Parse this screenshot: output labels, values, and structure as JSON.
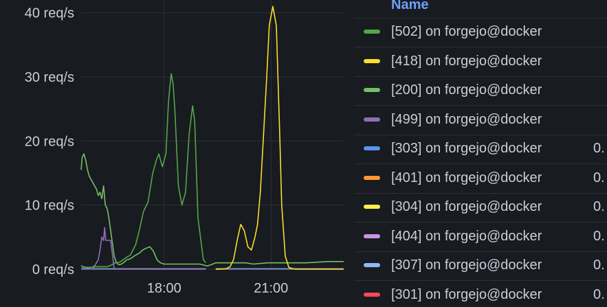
{
  "chart_data": {
    "type": "line",
    "x_unit": "time (hours, 24h clock)",
    "x_ticks": [
      {
        "x": 18,
        "label": "18:00"
      },
      {
        "x": 21,
        "label": "21:00"
      }
    ],
    "xlim": [
      15.67,
      23.04
    ],
    "y_ticks": [
      {
        "y": 0,
        "label": "0 req/s"
      },
      {
        "y": 10,
        "label": "10 req/s"
      },
      {
        "y": 20,
        "label": "20 req/s"
      },
      {
        "y": 30,
        "label": "30 req/s"
      },
      {
        "y": 40,
        "label": "40 req/s"
      }
    ],
    "ylim": [
      0,
      42
    ],
    "grid": true,
    "legend_position": "right",
    "series": [
      {
        "name": "[502] on forgejo@docker",
        "color": "#56a64b",
        "x": [
          15.67,
          15.72,
          15.79,
          16.0,
          16.02,
          16.03,
          16.4,
          16.5,
          16.62,
          16.7,
          16.78,
          16.9,
          17.05,
          17.2,
          17.3,
          17.42,
          17.55,
          17.68,
          17.78,
          17.85,
          17.95,
          18.05,
          18.12,
          18.17,
          18.2,
          18.25,
          18.3,
          18.4,
          18.5,
          18.6,
          18.7,
          18.8,
          18.86,
          18.95,
          19.1,
          19.17
        ],
        "y": [
          0.6,
          0.3,
          0.3,
          0.3,
          0.5,
          0.4,
          0.4,
          0.6,
          1.0,
          1.0,
          1.2,
          1.7,
          2.2,
          3.8,
          6.0,
          9.0,
          10.5,
          15.0,
          17.0,
          18.0,
          16.0,
          18.0,
          26.0,
          29.0,
          30.5,
          29.0,
          25.0,
          13.0,
          10.0,
          12.0,
          21.0,
          25.5,
          23.0,
          8.0,
          1.5,
          1.0
        ]
      },
      {
        "name": "[418] on forgejo@docker",
        "color": "#fade2a",
        "x": [
          19.45,
          19.6,
          19.75,
          19.85,
          19.95,
          20.05,
          20.15,
          20.25,
          20.35,
          20.45,
          20.55,
          20.62,
          20.7,
          20.75,
          20.8,
          20.88,
          20.95,
          21.05,
          21.15,
          21.25,
          21.3,
          21.4,
          21.5,
          21.6,
          21.7,
          21.8,
          23.04
        ],
        "y": [
          0.0,
          0.0,
          0.1,
          0.4,
          1.5,
          4.5,
          7.0,
          6.0,
          3.5,
          3.0,
          5.0,
          7.0,
          12.0,
          17.0,
          22.0,
          30.0,
          38.0,
          41.0,
          38.0,
          20.0,
          10.0,
          2.0,
          0.3,
          0.1,
          0.0,
          0.0,
          0.0
        ]
      },
      {
        "name": "[200] on forgejo@docker",
        "color": "#73bf69",
        "x": [
          15.67,
          15.7,
          15.75,
          15.8,
          15.85,
          15.9,
          15.95,
          16.0,
          16.05,
          16.1,
          16.15,
          16.2,
          16.25,
          16.3,
          16.35,
          16.4,
          16.45,
          16.5,
          16.55,
          16.6,
          16.65,
          16.7,
          16.75,
          16.8,
          16.85,
          16.9,
          16.95,
          17.0,
          17.1,
          17.2,
          17.3,
          17.4,
          17.5,
          17.6,
          17.7,
          17.8,
          17.85,
          17.9,
          17.95,
          18.0,
          18.5,
          19.0,
          19.22,
          19.45,
          20.0,
          20.3,
          20.5,
          20.9,
          21.5,
          22.0,
          22.6,
          23.04
        ],
        "y": [
          15.5,
          17.5,
          18.0,
          17.0,
          15.5,
          14.5,
          14.0,
          13.5,
          13.0,
          12.5,
          11.5,
          12.0,
          11.0,
          13.0,
          10.0,
          9.5,
          8.0,
          6.0,
          4.0,
          2.0,
          1.2,
          0.8,
          0.7,
          0.8,
          1.0,
          1.2,
          1.5,
          1.5,
          1.8,
          2.2,
          2.5,
          3.0,
          3.3,
          3.5,
          2.8,
          1.5,
          1.2,
          1.0,
          0.9,
          0.8,
          0.8,
          0.8,
          0.5,
          1.0,
          1.0,
          1.0,
          0.8,
          1.0,
          1.0,
          1.0,
          1.2,
          1.2
        ]
      },
      {
        "name": "[499] on forgejo@docker",
        "color": "#8f6fb8",
        "x": [
          15.67,
          16.0,
          16.05,
          16.1,
          16.15,
          16.2,
          16.25,
          16.3,
          16.33,
          16.36,
          16.42,
          16.5,
          16.6,
          16.8,
          17.5,
          18.5,
          19.17
        ],
        "y": [
          0.5,
          0.0,
          0.5,
          1.0,
          1.5,
          3.0,
          5.0,
          4.5,
          6.5,
          4.5,
          4.5,
          4.5,
          0.0,
          0.0,
          0.0,
          0.0,
          0.0
        ]
      },
      {
        "name": "[303] on forgejo@docker",
        "color": "#5794f2",
        "x": [
          15.67,
          19.17,
          19.45,
          23.04
        ],
        "y": [
          0.05,
          0.05,
          0.05,
          0.05
        ]
      },
      {
        "name": "[401] on forgejo@docker",
        "color": "#ff9830",
        "x": [
          15.67,
          19.17,
          19.45,
          23.04
        ],
        "y": [
          0.05,
          0.05,
          0.05,
          0.05
        ]
      },
      {
        "name": "[304] on forgejo@docker",
        "color": "#ffee52",
        "x": [
          15.67,
          19.17,
          19.45,
          23.04
        ],
        "y": [
          0.05,
          0.05,
          0.05,
          0.05
        ]
      },
      {
        "name": "[404] on forgejo@docker",
        "color": "#ca95e5",
        "x": [
          15.67,
          19.17,
          19.45,
          23.04
        ],
        "y": [
          0.05,
          0.05,
          0.05,
          0.05
        ]
      },
      {
        "name": "[307] on forgejo@docker",
        "color": "#8ab8ff",
        "x": [
          15.67,
          19.17,
          19.45,
          23.04
        ],
        "y": [
          0.05,
          0.05,
          0.05,
          0.05
        ]
      },
      {
        "name": "[301] on forgejo@docker",
        "color": "#f2495c",
        "x": [
          15.67,
          19.17,
          19.45,
          23.04
        ],
        "y": [
          0.05,
          0.05,
          0.05,
          0.05
        ]
      }
    ]
  },
  "legend": {
    "header": "Name",
    "rows": [
      {
        "label": "[502] on forgejo@docker",
        "color": "#56a64b",
        "value": ""
      },
      {
        "label": "[418] on forgejo@docker",
        "color": "#fade2a",
        "value": ""
      },
      {
        "label": "[200] on forgejo@docker",
        "color": "#73bf69",
        "value": ""
      },
      {
        "label": "[499] on forgejo@docker",
        "color": "#8f6fb8",
        "value": ""
      },
      {
        "label": "[303] on forgejo@docker",
        "color": "#5794f2",
        "value": "0."
      },
      {
        "label": "[401] on forgejo@docker",
        "color": "#ff9830",
        "value": "0."
      },
      {
        "label": "[304] on forgejo@docker",
        "color": "#ffee52",
        "value": "0."
      },
      {
        "label": "[404] on forgejo@docker",
        "color": "#ca95e5",
        "value": "0."
      },
      {
        "label": "[307] on forgejo@docker",
        "color": "#8ab8ff",
        "value": "0."
      },
      {
        "label": "[301] on forgejo@docker",
        "color": "#f2495c",
        "value": "0."
      }
    ]
  }
}
